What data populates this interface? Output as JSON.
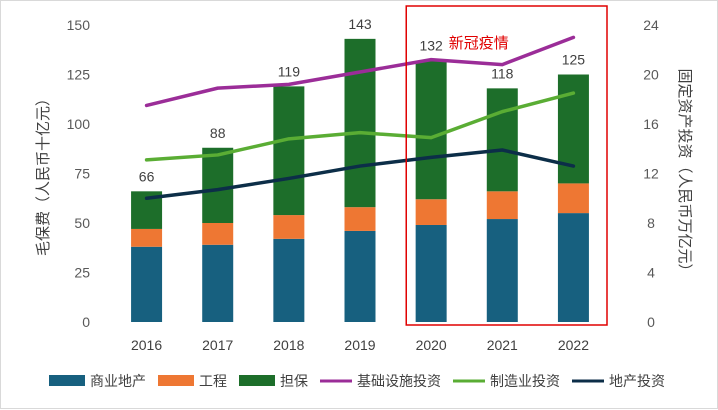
{
  "chart_data": {
    "type": "bar",
    "categories": [
      "2016",
      "2017",
      "2018",
      "2019",
      "2020",
      "2021",
      "2022"
    ],
    "stacked_series": [
      {
        "name": "商业地产",
        "color": "#17607f",
        "values": [
          38,
          39,
          42,
          46,
          49,
          52,
          55
        ]
      },
      {
        "name": "工程",
        "color": "#ee7733",
        "values": [
          9,
          11,
          12,
          12,
          13,
          14,
          15
        ]
      },
      {
        "name": "担保",
        "color": "#1d6e2a",
        "values": [
          19,
          38,
          65,
          85,
          70,
          52,
          55
        ]
      }
    ],
    "totals": [
      66,
      88,
      119,
      143,
      132,
      118,
      125
    ],
    "line_series": [
      {
        "name": "基础设施投资",
        "color": "#9b2d98",
        "values": [
          17.5,
          18.9,
          19.2,
          20.2,
          21.2,
          20.8,
          23.0
        ]
      },
      {
        "name": "制造业投资",
        "color": "#5aad34",
        "values": [
          13.1,
          13.5,
          14.8,
          15.3,
          14.9,
          17.0,
          18.5
        ]
      },
      {
        "name": "地产投资",
        "color": "#0c2e48",
        "values": [
          10.0,
          10.7,
          11.6,
          12.6,
          13.3,
          13.9,
          12.6
        ]
      }
    ],
    "ylabel": "毛保费（人民币十亿元）",
    "y2label": "固定资产投资（人民币万亿元）",
    "ylim": [
      0,
      150
    ],
    "yticks": [
      "0",
      "25",
      "50",
      "75",
      "100",
      "125",
      "150"
    ],
    "y2lim": [
      0,
      24
    ],
    "y2ticks": [
      "0",
      "4",
      "8",
      "12",
      "16",
      "20",
      "24"
    ],
    "highlight": {
      "label": "新冠疫情",
      "categories": [
        "2020",
        "2021",
        "2022"
      ],
      "color": "#e00000"
    },
    "grid": false,
    "legend_position": "bottom"
  }
}
